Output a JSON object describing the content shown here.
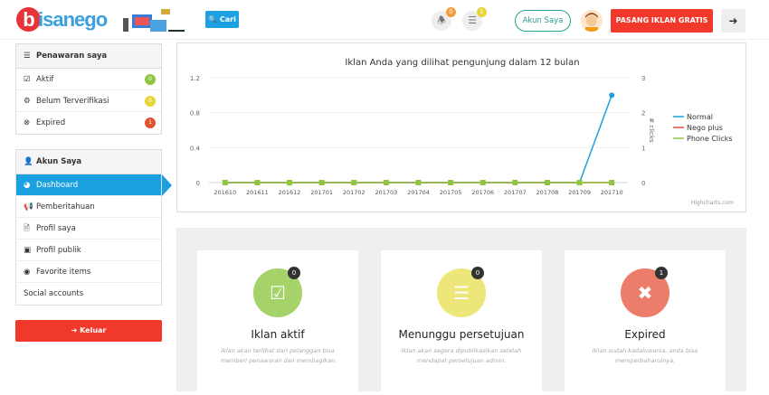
{
  "header": {
    "logo": "bisanego",
    "search_label": "Cari",
    "notif_count": "0",
    "list_count": "1",
    "account_label": "Akun Saya",
    "post_ad_label": "PASANG IKLAN GRATIS"
  },
  "colors": {
    "accent": "#1ba1e2",
    "danger": "#f0392b",
    "teal": "#2a9d8f"
  },
  "offers": {
    "title": "Penawaran saya",
    "items": [
      {
        "label": "Aktif",
        "count": "0",
        "color": "#8dc63f"
      },
      {
        "label": "Belum Terverifikasi",
        "count": "0",
        "color": "#e8d53a"
      },
      {
        "label": "Expired",
        "count": "1",
        "color": "#e2522f"
      }
    ]
  },
  "account": {
    "title": "Akun Saya",
    "items": [
      {
        "label": "Dashboard",
        "icon": "dashboard-icon"
      },
      {
        "label": "Pemberitahuan",
        "icon": "bullhorn-icon"
      },
      {
        "label": "Profil saya",
        "icon": "file-icon"
      },
      {
        "label": "Profil publik",
        "icon": "image-icon"
      },
      {
        "label": "Favorite items",
        "icon": "circle-icon"
      },
      {
        "label": "Social accounts",
        "icon": ""
      }
    ]
  },
  "logout_label": "Keluar",
  "chart_data": {
    "type": "line",
    "title": "Iklan Anda yang dilihat pengunjung dalam 12 bulan",
    "categories": [
      "201610",
      "201611",
      "201612",
      "201701",
      "201702",
      "201703",
      "201704",
      "201705",
      "201706",
      "201707",
      "201708",
      "201709",
      "201710"
    ],
    "y_left": {
      "range": [
        0,
        1.2
      ],
      "ticks": [
        "0",
        "0.4",
        "0.8",
        "1.2"
      ]
    },
    "y_right": {
      "label": "# clicks",
      "range": [
        0,
        3
      ],
      "ticks": [
        "0",
        "1",
        "2",
        "3"
      ]
    },
    "series": [
      {
        "name": "Normal",
        "color": "#1ba1e2",
        "axis": "left",
        "values": [
          0,
          0,
          0,
          0,
          0,
          0,
          0,
          0,
          0,
          0,
          0,
          0,
          1
        ]
      },
      {
        "name": "Nego plus",
        "color": "#e74c3c",
        "axis": "left",
        "values": [
          0,
          0,
          0,
          0,
          0,
          0,
          0,
          0,
          0,
          0,
          0,
          0,
          0
        ]
      },
      {
        "name": "Phone Clicks",
        "color": "#8dc63f",
        "axis": "right",
        "values": [
          0,
          0,
          0,
          0,
          0,
          0,
          0,
          0,
          0,
          0,
          0,
          0,
          0
        ]
      }
    ],
    "legend": "right",
    "credit": "Highcharts.com",
    "grid": true
  },
  "cards": [
    {
      "title": "Iklan aktif",
      "count": "0",
      "color": "#a5d36a",
      "icon": "check-icon",
      "desc": "Iklan akan terlihat dari pelanggan bisa memberi penawaran dan membagikan"
    },
    {
      "title": "Menunggu persetujuan",
      "count": "0",
      "color": "#ede77a",
      "icon": "stack-icon",
      "desc": "Iklan akan segera dipublikasikan setelah mendapat persetujuan admin."
    },
    {
      "title": "Expired",
      "count": "1",
      "color": "#ec7d6b",
      "icon": "close-icon",
      "desc": "Iklan sudah kadaluwarsa, anda bisa memperbaharuinya."
    }
  ]
}
